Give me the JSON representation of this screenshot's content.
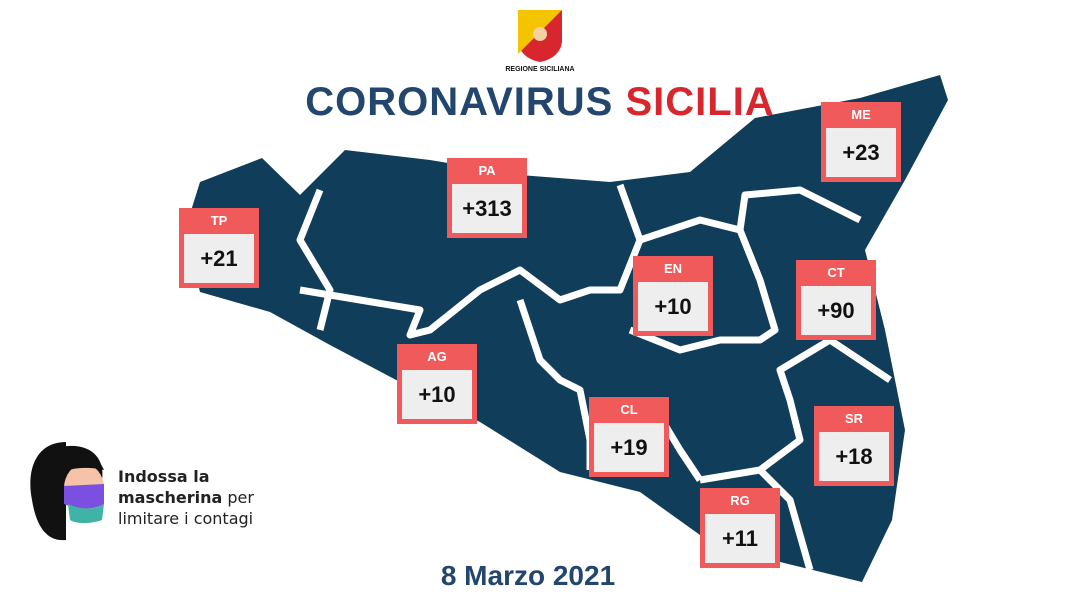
{
  "header": {
    "logo_text": "REGIONE SICILIANA",
    "title_part1": "CORONAVIRUS",
    "title_part2": "SICILIA"
  },
  "colors": {
    "title_navy": "#23466e",
    "title_red": "#d8262f",
    "map_fill": "#0f3d5a",
    "box_red": "#f05a5b"
  },
  "provinces": [
    {
      "code": "TP",
      "value": "+21"
    },
    {
      "code": "PA",
      "value": "+313"
    },
    {
      "code": "ME",
      "value": "+23"
    },
    {
      "code": "EN",
      "value": "+10"
    },
    {
      "code": "CT",
      "value": "+90"
    },
    {
      "code": "AG",
      "value": "+10"
    },
    {
      "code": "CL",
      "value": "+19"
    },
    {
      "code": "SR",
      "value": "+18"
    },
    {
      "code": "RG",
      "value": "+11"
    }
  ],
  "message": {
    "line1": "Indossa la",
    "line2_bold": "mascherina",
    "line2_rest": "per",
    "line3": "limitare i contagi"
  },
  "date": "8 Marzo 2021"
}
